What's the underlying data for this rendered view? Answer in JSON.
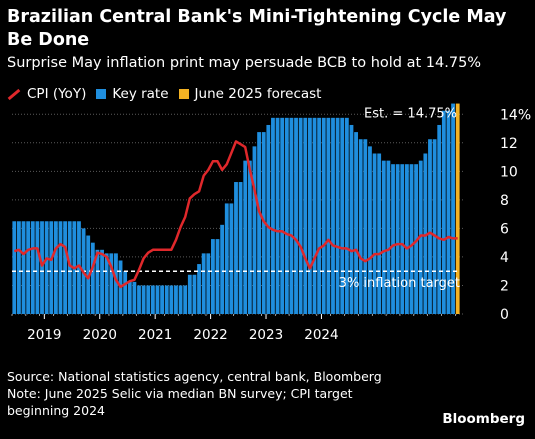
{
  "title": "Brazilian Central Bank's Mini-Tightening Cycle May Be Done",
  "subtitle": "Surprise May inflation print may persuade BCB to hold at 14.75%",
  "legend": {
    "cpi": "CPI (YoY)",
    "key_rate": "Key rate",
    "forecast": "June 2025 forecast"
  },
  "source": "Source: National statistics agency, central bank, Bloomberg",
  "note": "Note: June 2025 Selic via median BN survey; CPI target beginning 2024",
  "brand": "Bloomberg",
  "colors": {
    "cpi": "#e0282b",
    "key_rate": "#1f8ede",
    "forecast": "#f4b223",
    "background": "#000000"
  },
  "chart_data": {
    "type": "bar",
    "x_start": "2018-06",
    "x_ticks": [
      "2019",
      "2020",
      "2021",
      "2022",
      "2023",
      "2024"
    ],
    "y_ticks": [
      "0",
      "2",
      "4",
      "6",
      "8",
      "10",
      "12",
      "14%"
    ],
    "ylim": [
      0,
      15
    ],
    "grid": true,
    "annotations": {
      "estimate": "Est. = 14.75%",
      "target": "3% inflation target"
    },
    "target_value": 3,
    "series": [
      {
        "name": "Key rate",
        "values": [
          6.5,
          6.5,
          6.5,
          6.5,
          6.5,
          6.5,
          6.5,
          6.5,
          6.5,
          6.5,
          6.5,
          6.5,
          6.5,
          6.5,
          6.5,
          6.0,
          5.5,
          5.0,
          4.5,
          4.5,
          4.25,
          4.25,
          4.25,
          3.75,
          3.0,
          2.25,
          2.25,
          2.0,
          2.0,
          2.0,
          2.0,
          2.0,
          2.0,
          2.0,
          2.0,
          2.0,
          2.0,
          2.0,
          2.75,
          2.75,
          3.5,
          4.25,
          4.25,
          5.25,
          5.25,
          6.25,
          7.75,
          7.75,
          9.25,
          9.25,
          10.75,
          10.75,
          11.75,
          12.75,
          12.75,
          13.25,
          13.75,
          13.75,
          13.75,
          13.75,
          13.75,
          13.75,
          13.75,
          13.75,
          13.75,
          13.75,
          13.75,
          13.75,
          13.75,
          13.75,
          13.75,
          13.75,
          13.75,
          13.25,
          12.75,
          12.25,
          12.25,
          11.75,
          11.25,
          11.25,
          10.75,
          10.75,
          10.5,
          10.5,
          10.5,
          10.5,
          10.5,
          10.5,
          10.75,
          11.25,
          12.25,
          12.25,
          13.25,
          14.25,
          14.25,
          14.75,
          14.75
        ]
      },
      {
        "name": "CPI (YoY)",
        "values": [
          4.4,
          4.5,
          4.2,
          4.5,
          4.6,
          4.6,
          3.4,
          3.9,
          3.8,
          4.6,
          4.9,
          4.7,
          3.4,
          3.2,
          3.4,
          2.9,
          2.5,
          3.3,
          4.3,
          4.2,
          4.0,
          3.3,
          2.4,
          1.9,
          2.1,
          2.3,
          2.4,
          3.1,
          3.9,
          4.3,
          4.5,
          4.5,
          4.5,
          4.5,
          4.5,
          5.2,
          6.1,
          6.8,
          8.1,
          8.4,
          8.6,
          9.7,
          10.1,
          10.7,
          10.7,
          10.1,
          10.5,
          11.3,
          12.1,
          11.9,
          11.7,
          10.1,
          8.7,
          7.2,
          6.5,
          6.1,
          5.9,
          5.8,
          5.8,
          5.6,
          5.5,
          5.2,
          4.7,
          3.9,
          3.2,
          3.9,
          4.6,
          4.8,
          5.2,
          4.8,
          4.7,
          4.6,
          4.6,
          4.4,
          4.5,
          3.9,
          3.7,
          3.9,
          4.2,
          4.2,
          4.4,
          4.5,
          4.8,
          4.9,
          4.9,
          4.6,
          4.8,
          5.1,
          5.5,
          5.5,
          5.7,
          5.5,
          5.3,
          5.2,
          5.4,
          5.3,
          5.3
        ]
      },
      {
        "name": "June 2025 forecast",
        "values": [
          14.75
        ]
      }
    ]
  }
}
